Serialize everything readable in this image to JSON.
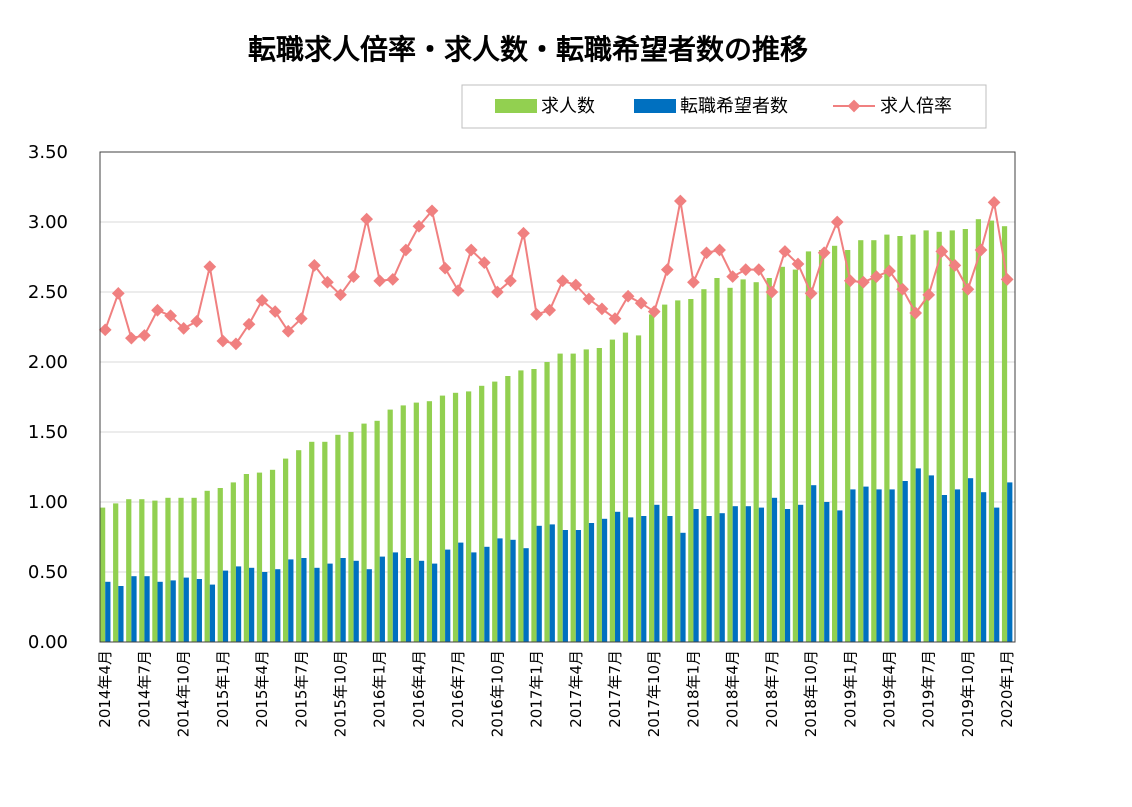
{
  "chart_data": {
    "type": "bar",
    "title": "転職求人倍率・求人数・転職希望者数の推移",
    "ylim": [
      0,
      3.5
    ],
    "yticks": [
      "0.00",
      "0.50",
      "1.00",
      "1.50",
      "2.00",
      "2.50",
      "3.00",
      "3.50"
    ],
    "grid": true,
    "legend_position": "top-right",
    "categories": [
      "2014年4月",
      "2014年5月",
      "2014年6月",
      "2014年7月",
      "2014年8月",
      "2014年9月",
      "2014年10月",
      "2014年11月",
      "2014年12月",
      "2015年1月",
      "2015年2月",
      "2015年3月",
      "2015年4月",
      "2015年5月",
      "2015年6月",
      "2015年7月",
      "2015年8月",
      "2015年9月",
      "2015年10月",
      "2015年11月",
      "2015年12月",
      "2016年1月",
      "2016年2月",
      "2016年3月",
      "2016年4月",
      "2016年5月",
      "2016年6月",
      "2016年7月",
      "2016年8月",
      "2016年9月",
      "2016年10月",
      "2016年11月",
      "2016年12月",
      "2017年1月",
      "2017年2月",
      "2017年3月",
      "2017年4月",
      "2017年5月",
      "2017年6月",
      "2017年7月",
      "2017年8月",
      "2017年9月",
      "2017年10月",
      "2017年11月",
      "2017年12月",
      "2018年1月",
      "2018年2月",
      "2018年3月",
      "2018年4月",
      "2018年5月",
      "2018年6月",
      "2018年7月",
      "2018年8月",
      "2018年9月",
      "2018年10月",
      "2018年11月",
      "2018年12月",
      "2019年1月",
      "2019年2月",
      "2019年3月",
      "2019年4月",
      "2019年5月",
      "2019年6月",
      "2019年7月",
      "2019年8月",
      "2019年9月",
      "2019年10月",
      "2019年11月",
      "2019年12月",
      "2020年1月"
    ],
    "xtick_labels": [
      "2014年4月",
      "2014年7月",
      "2014年10月",
      "2015年1月",
      "2015年4月",
      "2015年7月",
      "2015年10月",
      "2016年1月",
      "2016年4月",
      "2016年7月",
      "2016年10月",
      "2017年1月",
      "2017年4月",
      "2017年7月",
      "2017年10月",
      "2018年1月",
      "2018年4月",
      "2018年7月",
      "2018年10月",
      "2019年1月",
      "2019年4月",
      "2019年7月",
      "2019年10月",
      "2020年1月"
    ],
    "xtick_every": 3,
    "series": [
      {
        "name": "求人数",
        "type": "bar",
        "color": "#92d050",
        "values": [
          0.96,
          0.99,
          1.02,
          1.02,
          1.01,
          1.03,
          1.03,
          1.03,
          1.08,
          1.1,
          1.14,
          1.2,
          1.21,
          1.23,
          1.31,
          1.37,
          1.43,
          1.43,
          1.48,
          1.5,
          1.56,
          1.58,
          1.66,
          1.69,
          1.71,
          1.72,
          1.76,
          1.78,
          1.79,
          1.83,
          1.86,
          1.9,
          1.94,
          1.95,
          2.0,
          2.06,
          2.06,
          2.09,
          2.1,
          2.16,
          2.21,
          2.19,
          2.34,
          2.41,
          2.44,
          2.45,
          2.52,
          2.6,
          2.53,
          2.59,
          2.57,
          2.6,
          2.68,
          2.66,
          2.79,
          2.8,
          2.83,
          2.8,
          2.87,
          2.87,
          2.91,
          2.9,
          2.91,
          2.94,
          2.93,
          2.94,
          2.95,
          3.02,
          3.01,
          2.97
        ]
      },
      {
        "name": "転職希望者数",
        "type": "bar",
        "color": "#0070c0",
        "values": [
          0.43,
          0.4,
          0.47,
          0.47,
          0.43,
          0.44,
          0.46,
          0.45,
          0.41,
          0.51,
          0.54,
          0.53,
          0.5,
          0.52,
          0.59,
          0.6,
          0.53,
          0.56,
          0.6,
          0.58,
          0.52,
          0.61,
          0.64,
          0.6,
          0.58,
          0.56,
          0.66,
          0.71,
          0.64,
          0.68,
          0.74,
          0.73,
          0.67,
          0.83,
          0.84,
          0.8,
          0.8,
          0.85,
          0.88,
          0.93,
          0.89,
          0.9,
          0.98,
          0.9,
          0.78,
          0.95,
          0.9,
          0.92,
          0.97,
          0.97,
          0.96,
          1.03,
          0.95,
          0.98,
          1.12,
          1.0,
          0.94,
          1.09,
          1.11,
          1.09,
          1.09,
          1.15,
          1.24,
          1.19,
          1.05,
          1.09,
          1.17,
          1.07,
          0.96,
          1.14
        ]
      },
      {
        "name": "求人倍率",
        "type": "line",
        "color": "#f08080",
        "values": [
          2.23,
          2.49,
          2.17,
          2.19,
          2.37,
          2.33,
          2.24,
          2.29,
          2.68,
          2.15,
          2.13,
          2.27,
          2.44,
          2.36,
          2.22,
          2.31,
          2.69,
          2.57,
          2.48,
          2.61,
          3.02,
          2.58,
          2.59,
          2.8,
          2.97,
          3.08,
          2.67,
          2.51,
          2.8,
          2.71,
          2.5,
          2.58,
          2.92,
          2.34,
          2.37,
          2.58,
          2.55,
          2.45,
          2.38,
          2.31,
          2.47,
          2.42,
          2.36,
          2.66,
          3.15,
          2.57,
          2.78,
          2.8,
          2.61,
          2.66,
          2.66,
          2.5,
          2.79,
          2.7,
          2.49,
          2.78,
          3.0,
          2.58,
          2.57,
          2.61,
          2.65,
          2.52,
          2.35,
          2.48,
          2.79,
          2.69,
          2.52,
          2.8,
          3.14,
          2.59
        ]
      }
    ]
  }
}
